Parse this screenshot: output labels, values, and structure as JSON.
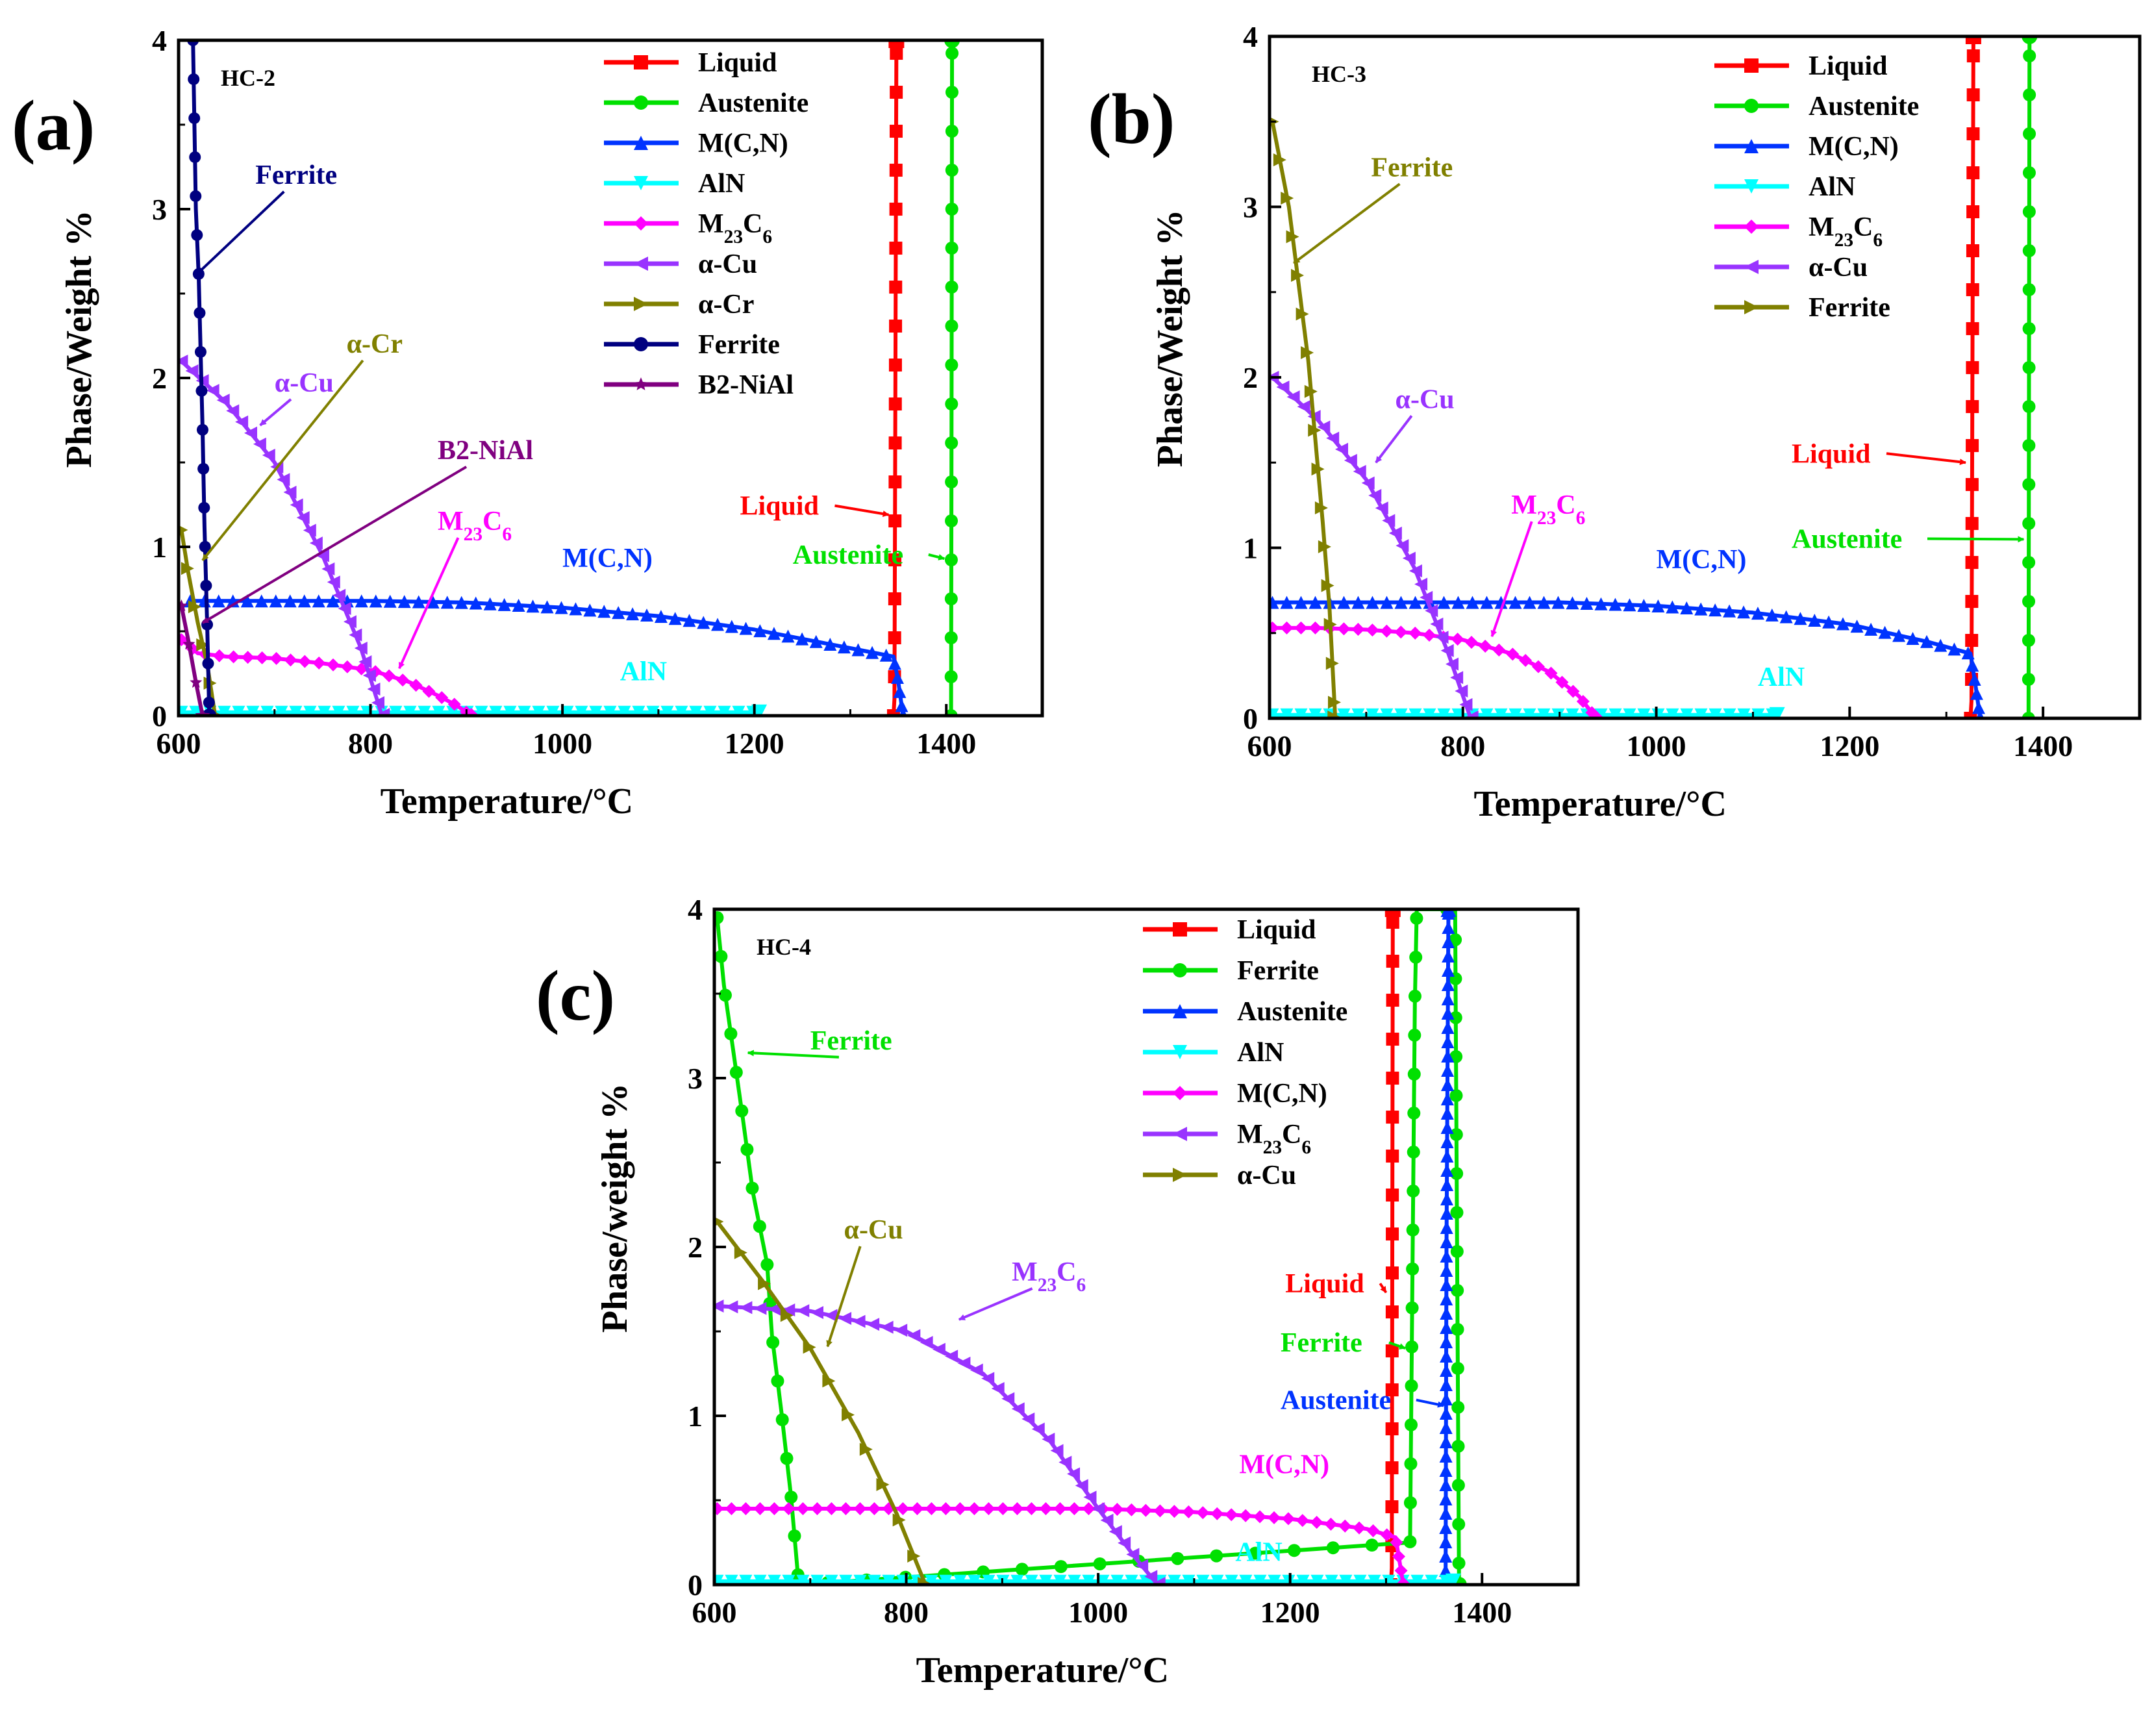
{
  "chart_data": [
    {
      "type": "line",
      "panel_label": "(a)",
      "sample": "HC-2",
      "xlabel": "Temperature/°C",
      "ylabel": "Phase/Weight %",
      "xlim": [
        600,
        1500
      ],
      "ylim": [
        0,
        4
      ],
      "xticks": [
        600,
        800,
        1000,
        1200,
        1400
      ],
      "yticks": [
        0,
        1,
        2,
        3,
        4
      ],
      "legend_position": "top-right",
      "series": [
        {
          "name": "Liquid",
          "color": "#ff0000",
          "marker": "square",
          "points": [
            [
              1345,
              0
            ],
            [
              1346,
              0.1
            ],
            [
              1348,
              4
            ]
          ]
        },
        {
          "name": "Austenite",
          "color": "#00e000",
          "marker": "circle",
          "points": [
            [
              1405,
              0
            ],
            [
              1405.5,
              2
            ],
            [
              1406,
              4
            ]
          ]
        },
        {
          "name": "M(C,N)",
          "color": "#0033ff",
          "marker": "triangle-up",
          "points": [
            [
              612,
              0.68
            ],
            [
              700,
              0.68
            ],
            [
              800,
              0.68
            ],
            [
              900,
              0.67
            ],
            [
              1000,
              0.64
            ],
            [
              1100,
              0.59
            ],
            [
              1200,
              0.51
            ],
            [
              1300,
              0.4
            ],
            [
              1345,
              0.35
            ],
            [
              1350,
              0.2
            ],
            [
              1355,
              0
            ]
          ]
        },
        {
          "name": "AlN",
          "color": "#00ffff",
          "marker": "triangle-down",
          "points": [
            [
              603,
              0.02
            ],
            [
              800,
              0.02
            ],
            [
              1000,
              0.02
            ],
            [
              1205,
              0.02
            ]
          ]
        },
        {
          "name": "M23C6",
          "color": "#ff00ff",
          "marker": "diamond",
          "points": [
            [
              603,
              0.45
            ],
            [
              620,
              0.37
            ],
            [
              650,
              0.35
            ],
            [
              700,
              0.34
            ],
            [
              750,
              0.31
            ],
            [
              800,
              0.27
            ],
            [
              840,
              0.2
            ],
            [
              870,
              0.12
            ],
            [
              890,
              0.06
            ],
            [
              905,
              0
            ]
          ]
        },
        {
          "name": "α-Cu",
          "color": "#9933ff",
          "marker": "triangle-left",
          "points": [
            [
              603,
              2.1
            ],
            [
              650,
              1.85
            ],
            [
              700,
              1.5
            ],
            [
              750,
              0.95
            ],
            [
              790,
              0.4
            ],
            [
              812,
              0
            ]
          ]
        },
        {
          "name": "α-Cr",
          "color": "#808000",
          "marker": "triangle-right",
          "points": [
            [
              603,
              1.1
            ],
            [
              610,
              0.85
            ],
            [
              620,
              0.55
            ],
            [
              630,
              0.3
            ],
            [
              638,
              0
            ]
          ]
        },
        {
          "name": "Ferrite",
          "color": "#000080",
          "marker": "circle",
          "points": [
            [
              615,
              4.0
            ],
            [
              618,
              3.0
            ],
            [
              621,
              2.6
            ],
            [
              625,
              1.7
            ],
            [
              627,
              1.12
            ],
            [
              630,
              0.5
            ],
            [
              632,
              0
            ]
          ]
        },
        {
          "name": "B2-NiAl",
          "color": "#800080",
          "marker": "star",
          "points": [
            [
              603,
              0.65
            ],
            [
              610,
              0.45
            ],
            [
              618,
              0.2
            ],
            [
              625,
              0
            ]
          ]
        }
      ],
      "annotations": [
        {
          "text": "Ferrite",
          "color": "#000080",
          "x": 680,
          "y": 3.15,
          "ax": 620,
          "ay": 2.62
        },
        {
          "text": "α-Cu",
          "color": "#9933ff",
          "x": 700,
          "y": 1.92,
          "ax": 685,
          "ay": 1.72
        },
        {
          "text": "α-Cr",
          "color": "#808000",
          "x": 775,
          "y": 2.15,
          "ax": 625,
          "ay": 0.92
        },
        {
          "text": "B2-NiAl",
          "color": "#800080",
          "x": 870,
          "y": 1.52,
          "ax": 625,
          "ay": 0.55
        },
        {
          "text": "M23C6",
          "color": "#ff00ff",
          "x": 870,
          "y": 1.1,
          "ax": 830,
          "ay": 0.28
        },
        {
          "text": "M(C,N)",
          "color": "#0033ff",
          "x": 1000,
          "y": 0.88,
          "ax": null,
          "ay": null
        },
        {
          "text": "AlN",
          "color": "#00ffff",
          "x": 1060,
          "y": 0.21,
          "ax": null,
          "ay": null
        },
        {
          "text": "Liquid",
          "color": "#ff0000",
          "x": 1185,
          "y": 1.19,
          "ax": 1340,
          "ay": 1.19
        },
        {
          "text": "Austenite",
          "color": "#00e000",
          "x": 1240,
          "y": 0.9,
          "ax": 1398,
          "ay": 0.93
        }
      ]
    },
    {
      "type": "line",
      "panel_label": "(b)",
      "sample": "HC-3",
      "xlabel": "Temperature/°C",
      "ylabel": "Phase/Weight %",
      "xlim": [
        600,
        1500
      ],
      "ylim": [
        0,
        4
      ],
      "xticks": [
        600,
        800,
        1000,
        1200,
        1400
      ],
      "yticks": [
        0,
        1,
        2,
        3,
        4
      ],
      "legend_position": "top-right",
      "series": [
        {
          "name": "Liquid",
          "color": "#ff0000",
          "marker": "square",
          "points": [
            [
              1325,
              0
            ],
            [
              1326,
              0.1
            ],
            [
              1328,
              4
            ]
          ]
        },
        {
          "name": "Austenite",
          "color": "#00e000",
          "marker": "circle",
          "points": [
            [
              1385,
              0
            ],
            [
              1385.5,
              2
            ],
            [
              1386,
              4
            ]
          ]
        },
        {
          "name": "M(C,N)",
          "color": "#0033ff",
          "marker": "triangle-up",
          "points": [
            [
              603,
              0.68
            ],
            [
              700,
              0.68
            ],
            [
              800,
              0.68
            ],
            [
              900,
              0.68
            ],
            [
              1000,
              0.66
            ],
            [
              1100,
              0.62
            ],
            [
              1200,
              0.55
            ],
            [
              1280,
              0.45
            ],
            [
              1325,
              0.38
            ],
            [
              1330,
              0.2
            ],
            [
              1335,
              0
            ]
          ]
        },
        {
          "name": "AlN",
          "color": "#00ffff",
          "marker": "triangle-down",
          "points": [
            [
              603,
              0.02
            ],
            [
              800,
              0.02
            ],
            [
              1000,
              0.02
            ],
            [
              1125,
              0.02
            ]
          ]
        },
        {
          "name": "M23C6",
          "color": "#ff00ff",
          "marker": "diamond",
          "points": [
            [
              603,
              0.53
            ],
            [
              650,
              0.53
            ],
            [
              700,
              0.52
            ],
            [
              750,
              0.5
            ],
            [
              800,
              0.46
            ],
            [
              850,
              0.38
            ],
            [
              890,
              0.27
            ],
            [
              920,
              0.13
            ],
            [
              938,
              0
            ]
          ]
        },
        {
          "name": "α-Cu",
          "color": "#9933ff",
          "marker": "triangle-left",
          "points": [
            [
              603,
              2.0
            ],
            [
              650,
              1.75
            ],
            [
              700,
              1.4
            ],
            [
              750,
              0.88
            ],
            [
              785,
              0.38
            ],
            [
              808,
              0
            ]
          ]
        },
        {
          "name": "Ferrite",
          "color": "#808000",
          "marker": "triangle-right",
          "points": [
            [
              603,
              3.5
            ],
            [
              620,
              3.0
            ],
            [
              640,
              2.1
            ],
            [
              655,
              1.15
            ],
            [
              662,
              0.65
            ],
            [
              668,
              0
            ]
          ]
        }
      ],
      "annotations": [
        {
          "text": "Ferrite",
          "color": "#808000",
          "x": 705,
          "y": 3.18,
          "ax": 625,
          "ay": 2.67
        },
        {
          "text": "α-Cu",
          "color": "#9933ff",
          "x": 730,
          "y": 1.82,
          "ax": 710,
          "ay": 1.5
        },
        {
          "text": "M23C6",
          "color": "#ff00ff",
          "x": 850,
          "y": 1.2,
          "ax": 830,
          "ay": 0.48
        },
        {
          "text": "M(C,N)",
          "color": "#0033ff",
          "x": 1000,
          "y": 0.88,
          "ax": null,
          "ay": null
        },
        {
          "text": "AlN",
          "color": "#00ffff",
          "x": 1105,
          "y": 0.19,
          "ax": null,
          "ay": null
        },
        {
          "text": "Liquid",
          "color": "#ff0000",
          "x": 1140,
          "y": 1.5,
          "ax": 1320,
          "ay": 1.5
        },
        {
          "text": "Austenite",
          "color": "#00e000",
          "x": 1140,
          "y": 1.0,
          "ax": 1380,
          "ay": 1.05
        }
      ]
    },
    {
      "type": "line",
      "panel_label": "(c)",
      "sample": "HC-4",
      "xlabel": "Temperature/°C",
      "ylabel": "Phase/weight %",
      "xlim": [
        600,
        1500
      ],
      "ylim": [
        0,
        4
      ],
      "xticks": [
        600,
        800,
        1000,
        1200,
        1400
      ],
      "yticks": [
        0,
        1,
        2,
        3,
        4
      ],
      "legend_position": "top-right",
      "series": [
        {
          "name": "Liquid",
          "color": "#ff0000",
          "marker": "square",
          "points": [
            [
              1305,
              0
            ],
            [
              1306,
              0.1
            ],
            [
              1307,
              4
            ]
          ]
        },
        {
          "name": "Ferrite",
          "color": "#00e000",
          "marker": "circle",
          "points": [
            [
              603,
              3.95
            ],
            [
              610,
              3.55
            ],
            [
              620,
              3.15
            ],
            [
              630,
              2.75
            ],
            [
              640,
              2.33
            ],
            [
              655,
              1.9
            ],
            [
              660,
              1.48
            ],
            [
              670,
              1.02
            ],
            [
              680,
              0.52
            ],
            [
              688,
              0
            ],
            [
              1325,
              0.25
            ],
            [
              1330,
              3.45
            ],
            [
              1332,
              4
            ],
            [
              1372,
              4
            ],
            [
              1374,
              2
            ],
            [
              1376,
              0
            ]
          ]
        },
        {
          "name": "Austenite",
          "color": "#0033ff",
          "marker": "triangle-up",
          "points": [
            [
              1362,
              0
            ],
            [
              1363,
              2
            ],
            [
              1365,
              4
            ]
          ]
        },
        {
          "name": "AlN",
          "color": "#00ffff",
          "marker": "triangle-down",
          "points": [
            [
              603,
              0.02
            ],
            [
              800,
              0.02
            ],
            [
              1000,
              0.02
            ],
            [
              1200,
              0.02
            ],
            [
              1370,
              0.02
            ]
          ]
        },
        {
          "name": "M(C,N)",
          "color": "#ff00ff",
          "marker": "diamond",
          "points": [
            [
              603,
              0.45
            ],
            [
              800,
              0.45
            ],
            [
              1000,
              0.45
            ],
            [
              1100,
              0.43
            ],
            [
              1200,
              0.39
            ],
            [
              1280,
              0.33
            ],
            [
              1310,
              0.28
            ],
            [
              1318,
              0
            ]
          ]
        },
        {
          "name": "M23C6",
          "color": "#9933ff",
          "marker": "triangle-left",
          "points": [
            [
              603,
              1.65
            ],
            [
              700,
              1.62
            ],
            [
              800,
              1.5
            ],
            [
              880,
              1.25
            ],
            [
              950,
              0.85
            ],
            [
              1000,
              0.45
            ],
            [
              1040,
              0.15
            ],
            [
              1062,
              0
            ]
          ]
        },
        {
          "name": "α-Cu",
          "color": "#808000",
          "marker": "triangle-right",
          "points": [
            [
              603,
              2.15
            ],
            [
              650,
              1.8
            ],
            [
              700,
              1.4
            ],
            [
              750,
              0.9
            ],
            [
              790,
              0.42
            ],
            [
              820,
              0
            ]
          ]
        }
      ],
      "annotations": [
        {
          "text": "Ferrite",
          "color": "#00e000",
          "x": 700,
          "y": 3.17,
          "ax": 635,
          "ay": 3.15
        },
        {
          "text": "α-Cu",
          "color": "#808000",
          "x": 735,
          "y": 2.05,
          "ax": 718,
          "ay": 1.41
        },
        {
          "text": "M23C6",
          "color": "#9933ff",
          "x": 910,
          "y": 1.8,
          "ax": 855,
          "ay": 1.57
        },
        {
          "text": "Liquid",
          "color": "#ff0000",
          "x": 1195,
          "y": 1.73,
          "ax": 1300,
          "ay": 1.73
        },
        {
          "text": "Ferrite",
          "color": "#00e000",
          "x": 1190,
          "y": 1.38,
          "ax": 1320,
          "ay": 1.4
        },
        {
          "text": "Austenite",
          "color": "#0033ff",
          "x": 1190,
          "y": 1.04,
          "ax": 1360,
          "ay": 1.06
        },
        {
          "text": "M(C,N)",
          "color": "#ff00ff",
          "x": 1147,
          "y": 0.66,
          "ax": null,
          "ay": null
        },
        {
          "text": "AlN",
          "color": "#00ffff",
          "x": 1143,
          "y": 0.14,
          "ax": null,
          "ay": null
        }
      ]
    }
  ]
}
